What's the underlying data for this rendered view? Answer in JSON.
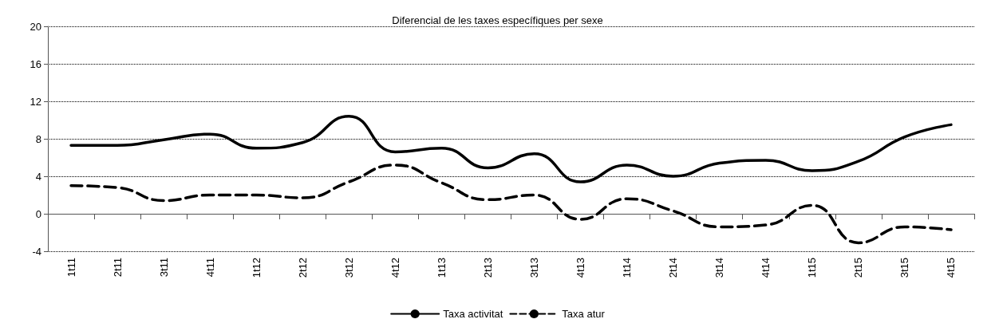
{
  "chart_data": {
    "type": "line",
    "title": "Diferencial de les taxes específiques per sexe",
    "categories": [
      "1t11",
      "2t11",
      "3t11",
      "4t11",
      "1t12",
      "2t12",
      "3t12",
      "4t12",
      "1t13",
      "2t13",
      "3t13",
      "4t13",
      "1t14",
      "2t14",
      "3t14",
      "4t14",
      "1t15",
      "2t15",
      "3t15",
      "4t15"
    ],
    "series": [
      {
        "name": "Taxa activitat",
        "color": "#000000",
        "line_style": "solid",
        "values": [
          7.3,
          7.3,
          7.9,
          8.5,
          7.0,
          7.6,
          10.4,
          6.6,
          7.0,
          4.9,
          6.4,
          3.4,
          5.2,
          4.0,
          5.4,
          5.7,
          4.6,
          5.6,
          8.2,
          9.5
        ]
      },
      {
        "name": "Taxa atur",
        "color": "#000000",
        "line_style": "dashed",
        "values": [
          3.0,
          2.8,
          1.4,
          2.0,
          2.0,
          1.7,
          3.4,
          5.2,
          3.3,
          1.5,
          2.0,
          -0.6,
          1.6,
          0.3,
          -1.4,
          -1.2,
          0.9,
          -3.1,
          -1.4,
          -1.7
        ]
      }
    ],
    "ylim": [
      -4,
      20
    ],
    "yticks": [
      -4,
      0,
      4,
      8,
      12,
      16,
      20
    ],
    "grid": "y",
    "legend": "bottom",
    "marker": "none"
  }
}
